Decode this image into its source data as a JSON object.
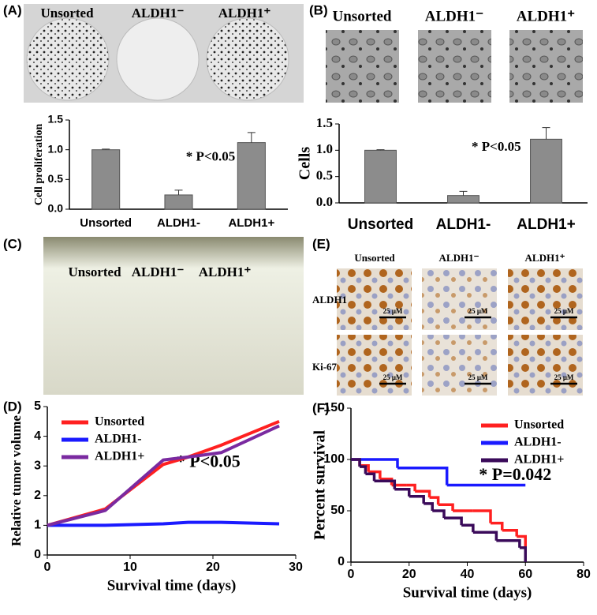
{
  "panel_labels": [
    "(A)",
    "(B)",
    "(C)",
    "(D)",
    "(E)",
    "(F)"
  ],
  "photo_a_labels": [
    "Unsorted",
    "ALDH1⁻",
    "ALDH1⁺"
  ],
  "photo_b_labels": [
    "Unsorted",
    "ALDH1⁻",
    "ALDH1⁺"
  ],
  "photo_c_labels": [
    "Unsorted",
    "ALDH1⁻",
    "ALDH1⁺"
  ],
  "ihc": {
    "columns": [
      "Unsorted",
      "ALDH1⁻",
      "ALDH1⁺"
    ],
    "rows": [
      "ALDH1",
      "Ki-67"
    ],
    "scale_labels": [
      "25 μM",
      "25 μM",
      "25 μM",
      "25 μM",
      "25 μM",
      "25 μM"
    ]
  },
  "chart_data": [
    {
      "type": "bar",
      "ylabel": "Cell proliferation",
      "categories": [
        "Unsorted",
        "ALDH1-",
        "ALDH1+"
      ],
      "values": [
        1.0,
        0.24,
        1.12
      ],
      "errors": [
        0.01,
        0.08,
        0.17
      ],
      "color": "#8c8c8c",
      "ylim": [
        0,
        1.5
      ],
      "yticks": [
        {
          "value": 0,
          "label": "0.0"
        },
        {
          "value": 0.5,
          "label": "0.5"
        },
        {
          "value": 1,
          "label": "1.0"
        },
        {
          "value": 1.5,
          "label": "1.5"
        }
      ],
      "annotation": "* P<0.05"
    },
    {
      "type": "bar",
      "ylabel": "Cells",
      "categories": [
        "Unsorted",
        "ALDH1-",
        "ALDH1+"
      ],
      "values": [
        1.0,
        0.14,
        1.21
      ],
      "errors": [
        0.01,
        0.08,
        0.22
      ],
      "color": "#8c8c8c",
      "ylim": [
        0,
        1.5
      ],
      "yticks": [
        {
          "value": 0,
          "label": "0.0"
        },
        {
          "value": 0.5,
          "label": "0.5"
        },
        {
          "value": 1,
          "label": "1.0"
        },
        {
          "value": 1.5,
          "label": "1.5"
        }
      ],
      "annotation": "* P<0.05"
    },
    {
      "type": "line",
      "xlabel": "Survival time (days)",
      "ylabel": "Relative tumor volume",
      "x": [
        0,
        7,
        14,
        17,
        21,
        28
      ],
      "series": [
        {
          "name": "Unsorted",
          "color": "#ff2020",
          "values": [
            1,
            1.55,
            3.05,
            3.3,
            3.7,
            4.5
          ]
        },
        {
          "name": "ALDH1-",
          "color": "#1a1aff",
          "values": [
            1,
            1.0,
            1.05,
            1.1,
            1.1,
            1.05
          ]
        },
        {
          "name": "ALDH1+",
          "color": "#7a2aa0",
          "values": [
            1,
            1.5,
            3.2,
            3.3,
            3.45,
            4.35
          ]
        }
      ],
      "xlim": [
        0,
        30
      ],
      "xticks": [
        0,
        10,
        20,
        30
      ],
      "ylim": [
        0,
        5
      ],
      "yticks": [
        0,
        1,
        2,
        3,
        4,
        5
      ],
      "legend": "upper left",
      "annotation": "* P<0.05"
    },
    {
      "type": "step",
      "xlabel": "Survival time (days)",
      "ylabel": "Percent survival",
      "series": [
        {
          "name": "Unsorted",
          "color": "#ff2020",
          "x": [
            0,
            3,
            6,
            10,
            14,
            19,
            22,
            27,
            30,
            35,
            42,
            48,
            52,
            57,
            60
          ],
          "values": [
            100,
            94,
            88,
            81,
            75,
            75,
            69,
            63,
            56,
            50,
            50,
            38,
            31,
            25,
            0
          ]
        },
        {
          "name": "ALDH1-",
          "color": "#1a1aff",
          "x": [
            0,
            16,
            33,
            60
          ],
          "values": [
            100,
            91.7,
            75,
            75
          ]
        },
        {
          "name": "ALDH1+",
          "color": "#3a0a5a",
          "x": [
            0,
            3,
            5,
            8,
            15,
            20,
            25,
            28,
            32,
            38,
            42,
            50,
            58,
            60
          ],
          "values": [
            100,
            93,
            86,
            79,
            71,
            64,
            57,
            50,
            43,
            36,
            29,
            21,
            14,
            0
          ]
        }
      ],
      "xlim": [
        0,
        80
      ],
      "xticks": [
        0,
        20,
        40,
        60,
        80
      ],
      "ylim": [
        0,
        150
      ],
      "yticks": [
        0,
        50,
        100,
        150
      ],
      "legend": "upper right",
      "annotation": "* P=0.042"
    }
  ]
}
